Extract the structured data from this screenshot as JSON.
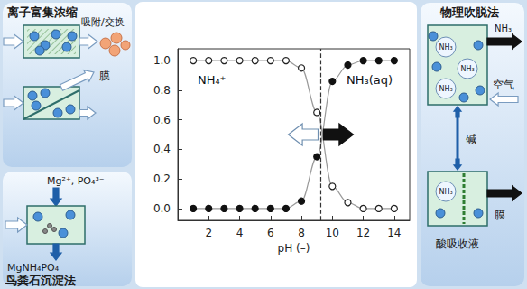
{
  "panels": {
    "ion_enrichment": {
      "title": "离子富集浓缩",
      "adsorption": "吸附/交换",
      "membrane": "膜"
    },
    "struvite": {
      "title": "鸟粪石沉淀法",
      "reagents": "Mg²⁺, PO₄³⁻",
      "product": "MgNH₄PO₄"
    },
    "stripping": {
      "title": "物理吹脱法",
      "gas": "NH₃",
      "air": "空气",
      "alkali": "碱",
      "membrane": "膜",
      "acid": "酸吸收液"
    }
  },
  "chart_data": {
    "type": "line",
    "x": [
      1,
      2,
      3,
      4,
      5,
      6,
      7,
      8,
      9,
      10,
      11,
      12,
      13,
      14
    ],
    "series": [
      {
        "name": "NH₄⁺",
        "color": "#222222",
        "marker": "open_circle",
        "values": [
          1,
          1,
          1,
          1,
          1,
          1,
          1,
          0.95,
          0.65,
          0.15,
          0.04,
          0,
          0,
          0
        ]
      },
      {
        "name": "NH₃(aq)",
        "color": "#111111",
        "marker": "filled_circle",
        "values": [
          0,
          0,
          0,
          0,
          0,
          0,
          0,
          0.05,
          0.35,
          0.86,
          0.97,
          1,
          1,
          1
        ]
      }
    ],
    "x_label": "pH (–)",
    "xlim": [
      0,
      15
    ],
    "ylim": [
      -0.08,
      1.08
    ],
    "xticks": [
      2,
      4,
      6,
      8,
      10,
      12,
      14
    ],
    "yticks": [
      {
        "value": 0,
        "label": "0.0"
      },
      0.2,
      0.4,
      0.6,
      0.8,
      {
        "value": 1,
        "label": "1.0"
      }
    ],
    "vline": 9.25,
    "grid": false
  }
}
